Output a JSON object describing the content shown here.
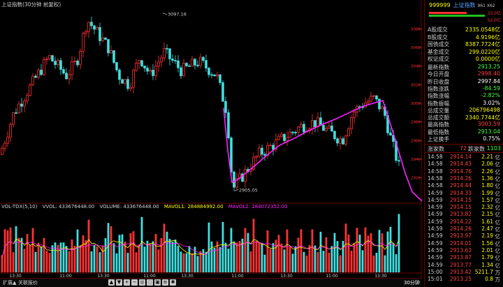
{
  "header": {
    "title": "上证指数(30分钟 前复权)",
    "high_label": "3097.16",
    "low_label": "2905.05"
  },
  "volume_header": {
    "name": "VOL-TDX(5,10)",
    "vvol_label": "VVOL: 433676448.00",
    "volume_label": "VOLUME: 433676448.00",
    "mavol1_label": "MAVOL1: 284884992.00",
    "mavol2_label": "MAVOL2: 284072352.00"
  },
  "colors": {
    "up": "#ff3232",
    "down": "#40e0e0",
    "ma": "#ff22ff",
    "mavol1": "#ffff00",
    "mavol2": "#ff22ff",
    "gridline": "#3a0000"
  },
  "time_axis": [
    "13:30",
    "11:00",
    "13:30",
    "11:00",
    "13:30",
    "11:00",
    "13:30",
    "11:00",
    "13:30"
  ],
  "bottom_tabs": {
    "left": "扩展▲",
    "right": "关联报价",
    "period": "30分钟"
  },
  "toolbar_icons": [
    "up-arrow-icon",
    "down-arrow-icon",
    "plus-icon",
    "minus-icon",
    "zoom-icon",
    "zoom-out-icon",
    "lock-icon",
    "settings-icon",
    "gear-icon"
  ],
  "panel": {
    "code": "999999",
    "name": "上证指数",
    "code2": "961 X62",
    "gauge_up": "33.0亿",
    "gauge_down": "52.0亿",
    "stats": [
      {
        "k": "A股成交",
        "v": "2335.0548亿",
        "c": "#ffff00"
      },
      {
        "k": "B股成交",
        "v": "4.9196亿",
        "c": "#ffff00"
      },
      {
        "k": "国债成交",
        "v": "8387.7724亿",
        "c": "#ffff00"
      },
      {
        "k": "基金成交",
        "v": "299.0220亿",
        "c": "#ffff00"
      },
      {
        "k": "权证成交",
        "v": "0.0000亿",
        "c": "#ffff00"
      }
    ],
    "quote": [
      {
        "k": "最新指数",
        "v": "2913.25",
        "c": "#40ff40"
      },
      {
        "k": "今日开盘",
        "v": "2998.40",
        "c": "#ff4040"
      },
      {
        "k": "昨日收盘",
        "v": "2997.84",
        "c": "#ffffff"
      },
      {
        "k": "指数涨跌",
        "v": "-84.59",
        "c": "#40ff40"
      },
      {
        "k": "指数涨幅",
        "v": "-2.82%",
        "c": "#40ff40"
      },
      {
        "k": "指数振幅",
        "v": "3.02%",
        "c": "#ffffff"
      },
      {
        "k": "总成交量",
        "v": "206796498",
        "c": "#ffff00"
      },
      {
        "k": "总成交额",
        "v": "2340.7744亿",
        "c": "#ffff00"
      },
      {
        "k": "最高指数",
        "v": "3003.59",
        "c": "#ff4040"
      },
      {
        "k": "最低指数",
        "v": "2913.04",
        "c": "#40ff40"
      },
      {
        "k": "上证换手",
        "v": "0.75%",
        "c": "#ffffff"
      }
    ],
    "breadth_label_up": "涨家数",
    "breadth_up": "72",
    "breadth_label_down": "跌家数",
    "breadth_down": "1103",
    "ticks": [
      {
        "t": "14:58",
        "p": "2914.14",
        "q": "2.21",
        "u": "亿"
      },
      {
        "t": "14:58",
        "p": "2914.43",
        "q": "2.06",
        "u": "亿"
      },
      {
        "t": "14:58",
        "p": "2914.76",
        "q": "2.26",
        "u": "亿"
      },
      {
        "t": "14:58",
        "p": "2914.26",
        "q": "1.36",
        "u": "亿"
      },
      {
        "t": "14:58",
        "p": "2914.44",
        "q": "1.80",
        "u": "亿"
      },
      {
        "t": "14:59",
        "p": "2914.33",
        "q": "1.99",
        "u": "亿"
      },
      {
        "t": "14:59",
        "p": "2914.15",
        "q": "1.57",
        "u": "亿"
      },
      {
        "t": "14:59",
        "p": "2914.15",
        "q": "2.32",
        "u": "亿"
      },
      {
        "t": "14:59",
        "p": "2913.82",
        "q": "2.15",
        "u": "亿"
      },
      {
        "t": "14:59",
        "p": "2914.22",
        "q": "1.61",
        "u": "亿"
      },
      {
        "t": "14:59",
        "p": "2914.26",
        "q": "2.47",
        "u": "亿"
      },
      {
        "t": "14:59",
        "p": "2913.97",
        "q": "2.19",
        "u": "亿"
      },
      {
        "t": "14:59",
        "p": "2914.01",
        "q": "1.56",
        "u": "亿"
      },
      {
        "t": "14:59",
        "p": "2913.63",
        "q": "2.01",
        "u": "亿"
      },
      {
        "t": "14:59",
        "p": "2913.87",
        "q": "1.79",
        "u": "亿"
      },
      {
        "t": "14:59",
        "p": "2913.77",
        "q": "1.34",
        "u": "亿"
      },
      {
        "t": "15:00",
        "p": "2913.42",
        "q": "5211.7",
        "u": "万"
      },
      {
        "t": "15:01",
        "p": "2913.25",
        "q": "0.8",
        "u": "万"
      }
    ]
  },
  "price_axis_labels": [
    "3080",
    "3060",
    "3040",
    "3020",
    "3000",
    "2980",
    "2960",
    "2940",
    "2920"
  ]
}
